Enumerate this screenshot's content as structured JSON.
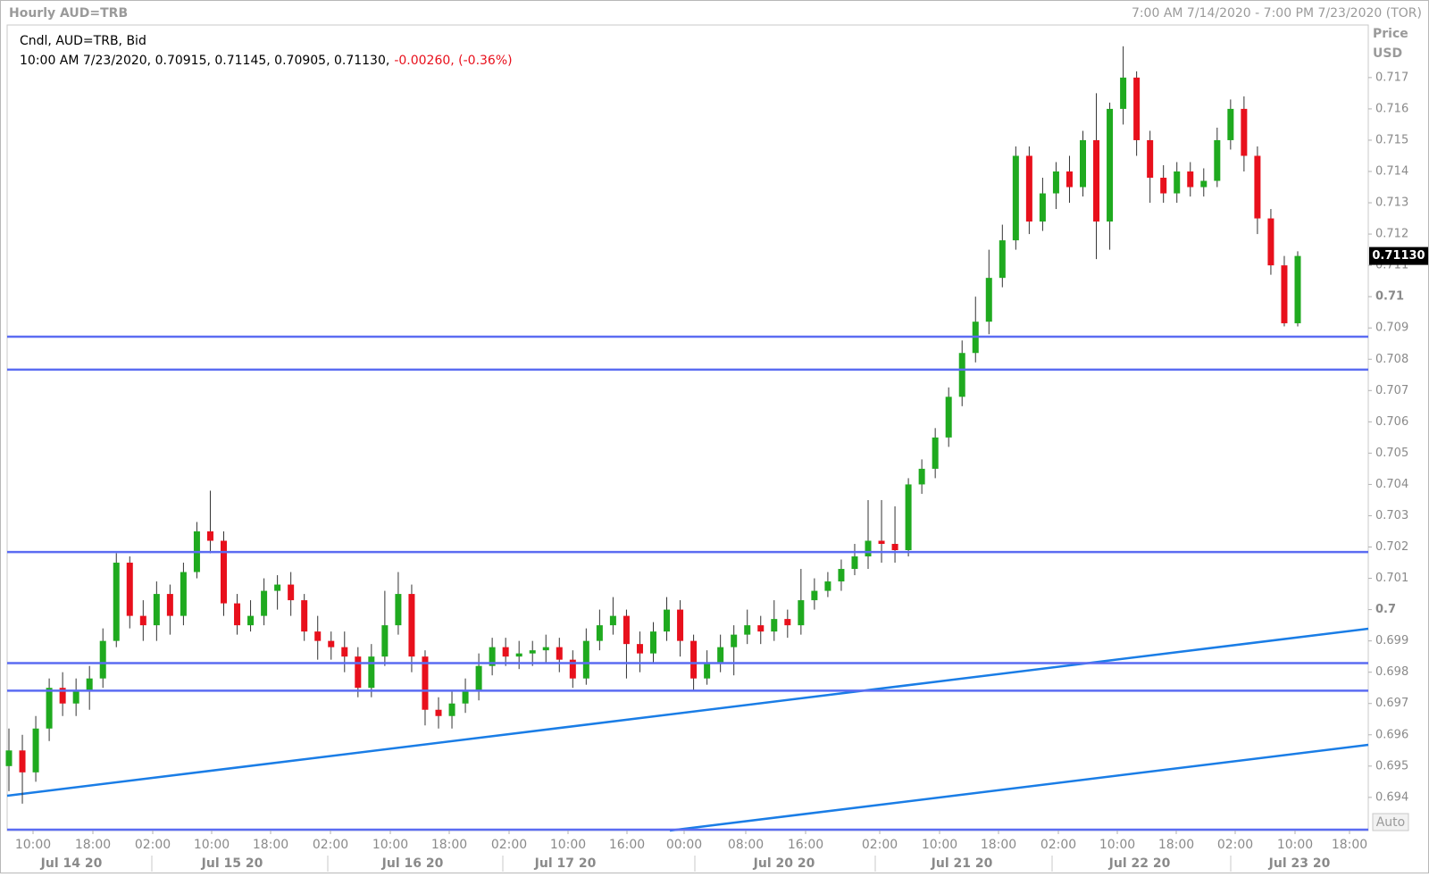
{
  "header": {
    "title": "Hourly AUD=TRB",
    "range": "7:00 AM 7/14/2020 - 7:00 PM 7/23/2020 (TOR)"
  },
  "chart_data": {
    "type": "candlestick",
    "legend_title": "Cndl, AUD=TRB, Bid",
    "legend_values": "10:00 AM 7/23/2020, 0.70915, 0.71145, 0.70905, 0.71130,",
    "legend_change": "-0.00260, (-0.36%)",
    "y_axis_title": [
      "Price",
      "USD"
    ],
    "last_price_label": "0.71130",
    "auto_label": "Auto",
    "up_color": "#1faa1f",
    "down_color": "#e8101c",
    "level_color": "#5b6cf2",
    "ylim": [
      0.69294,
      0.71868
    ],
    "yticks": [
      0.717,
      0.716,
      0.715,
      0.714,
      0.713,
      0.712,
      0.711,
      0.71,
      0.709,
      0.708,
      0.707,
      0.706,
      0.705,
      0.704,
      0.703,
      0.702,
      0.701,
      0.7,
      0.699,
      0.698,
      0.697,
      0.696,
      0.695,
      0.694
    ],
    "xtick_labels": [
      "10:00",
      "18:00",
      "02:00",
      "10:00",
      "18:00",
      "02:00",
      "10:00",
      "18:00",
      "02:00",
      "10:00",
      "16:00",
      "00:00",
      "08:00",
      "16:00",
      "02:00",
      "10:00",
      "18:00",
      "02:00",
      "10:00",
      "18:00",
      "02:00",
      "10:00",
      "18:00"
    ],
    "date_labels": [
      "Jul 14 20",
      "Jul 15 20",
      "Jul 16 20",
      "Jul 17 20",
      "Jul 20 20",
      "Jul 21 20",
      "Jul 22 20",
      "Jul 23 20"
    ],
    "levels": [
      0.70872,
      0.70767,
      0.70184,
      0.69829,
      0.69741
    ],
    "ohlc": [
      [
        0.695,
        0.6962,
        0.6942,
        0.6955
      ],
      [
        0.6955,
        0.696,
        0.6938,
        0.6948
      ],
      [
        0.6948,
        0.6966,
        0.6945,
        0.6962
      ],
      [
        0.6962,
        0.6978,
        0.6958,
        0.6975
      ],
      [
        0.6975,
        0.698,
        0.6966,
        0.697
      ],
      [
        0.697,
        0.6978,
        0.6966,
        0.6974
      ],
      [
        0.6974,
        0.6982,
        0.6968,
        0.6978
      ],
      [
        0.6978,
        0.6994,
        0.6975,
        0.699
      ],
      [
        0.699,
        0.7018,
        0.6988,
        0.7015
      ],
      [
        0.7015,
        0.7017,
        0.6994,
        0.6998
      ],
      [
        0.6998,
        0.7003,
        0.699,
        0.6995
      ],
      [
        0.6995,
        0.7009,
        0.699,
        0.7005
      ],
      [
        0.7005,
        0.7008,
        0.6992,
        0.6998
      ],
      [
        0.6998,
        0.7015,
        0.6995,
        0.7012
      ],
      [
        0.7012,
        0.7028,
        0.701,
        0.7025
      ],
      [
        0.7025,
        0.7038,
        0.7018,
        0.7022
      ],
      [
        0.7022,
        0.7025,
        0.6998,
        0.7002
      ],
      [
        0.7002,
        0.7005,
        0.6992,
        0.6995
      ],
      [
        0.6995,
        0.7003,
        0.6993,
        0.6998
      ],
      [
        0.6998,
        0.701,
        0.6995,
        0.7006
      ],
      [
        0.7006,
        0.7011,
        0.7,
        0.7008
      ],
      [
        0.7008,
        0.7012,
        0.6998,
        0.7003
      ],
      [
        0.7003,
        0.7005,
        0.699,
        0.6993
      ],
      [
        0.6993,
        0.6998,
        0.6984,
        0.699
      ],
      [
        0.699,
        0.6993,
        0.6984,
        0.6988
      ],
      [
        0.6988,
        0.6993,
        0.698,
        0.6985
      ],
      [
        0.6985,
        0.6988,
        0.6972,
        0.6975
      ],
      [
        0.6975,
        0.6989,
        0.6972,
        0.6985
      ],
      [
        0.6985,
        0.7006,
        0.6982,
        0.6995
      ],
      [
        0.6995,
        0.7012,
        0.6992,
        0.7005
      ],
      [
        0.7005,
        0.7008,
        0.698,
        0.6985
      ],
      [
        0.6985,
        0.6987,
        0.6963,
        0.6968
      ],
      [
        0.6968,
        0.6972,
        0.6962,
        0.6966
      ],
      [
        0.6966,
        0.6974,
        0.6962,
        0.697
      ],
      [
        0.697,
        0.6978,
        0.6967,
        0.6974
      ],
      [
        0.6974,
        0.6986,
        0.6971,
        0.6982
      ],
      [
        0.6982,
        0.6991,
        0.6979,
        0.6988
      ],
      [
        0.6988,
        0.6991,
        0.6982,
        0.6985
      ],
      [
        0.6985,
        0.699,
        0.6981,
        0.6986
      ],
      [
        0.6986,
        0.699,
        0.6982,
        0.6987
      ],
      [
        0.6987,
        0.6992,
        0.6983,
        0.6988
      ],
      [
        0.6988,
        0.6991,
        0.698,
        0.6984
      ],
      [
        0.6984,
        0.6987,
        0.6975,
        0.6978
      ],
      [
        0.6978,
        0.6994,
        0.6976,
        0.699
      ],
      [
        0.699,
        0.7,
        0.6987,
        0.6995
      ],
      [
        0.6995,
        0.7004,
        0.6992,
        0.6998
      ],
      [
        0.6998,
        0.7,
        0.6978,
        0.6989
      ],
      [
        0.6989,
        0.6993,
        0.698,
        0.6986
      ],
      [
        0.6986,
        0.6996,
        0.6983,
        0.6993
      ],
      [
        0.6993,
        0.7004,
        0.699,
        0.7
      ],
      [
        0.7,
        0.7003,
        0.6985,
        0.699
      ],
      [
        0.699,
        0.6992,
        0.6974,
        0.6978
      ],
      [
        0.6978,
        0.6987,
        0.6976,
        0.6983
      ],
      [
        0.6983,
        0.6992,
        0.698,
        0.6988
      ],
      [
        0.6988,
        0.6995,
        0.6979,
        0.6992
      ],
      [
        0.6992,
        0.7,
        0.6989,
        0.6995
      ],
      [
        0.6995,
        0.6998,
        0.6989,
        0.6993
      ],
      [
        0.6993,
        0.7003,
        0.699,
        0.6997
      ],
      [
        0.6997,
        0.7,
        0.6991,
        0.6995
      ],
      [
        0.6995,
        0.7013,
        0.6992,
        0.7003
      ],
      [
        0.7003,
        0.701,
        0.7,
        0.7006
      ],
      [
        0.7006,
        0.7012,
        0.7004,
        0.7009
      ],
      [
        0.7009,
        0.7016,
        0.7006,
        0.7013
      ],
      [
        0.7013,
        0.7021,
        0.7011,
        0.7017
      ],
      [
        0.7017,
        0.7035,
        0.7013,
        0.7022
      ],
      [
        0.7022,
        0.7035,
        0.7015,
        0.7021
      ],
      [
        0.7021,
        0.7033,
        0.7015,
        0.7019
      ],
      [
        0.7019,
        0.7042,
        0.7017,
        0.704
      ],
      [
        0.704,
        0.7048,
        0.7037,
        0.7045
      ],
      [
        0.7045,
        0.7058,
        0.7042,
        0.7055
      ],
      [
        0.7055,
        0.7071,
        0.7052,
        0.7068
      ],
      [
        0.7068,
        0.7086,
        0.7065,
        0.7082
      ],
      [
        0.7082,
        0.71,
        0.7079,
        0.7092
      ],
      [
        0.7092,
        0.7115,
        0.7088,
        0.7106
      ],
      [
        0.7106,
        0.7123,
        0.7103,
        0.7118
      ],
      [
        0.7118,
        0.7148,
        0.7115,
        0.7145
      ],
      [
        0.7145,
        0.7148,
        0.712,
        0.7124
      ],
      [
        0.7124,
        0.7138,
        0.7121,
        0.7133
      ],
      [
        0.7133,
        0.7143,
        0.7128,
        0.714
      ],
      [
        0.714,
        0.7145,
        0.713,
        0.7135
      ],
      [
        0.7135,
        0.7153,
        0.7132,
        0.715
      ],
      [
        0.715,
        0.7165,
        0.7112,
        0.7124
      ],
      [
        0.7124,
        0.7162,
        0.7115,
        0.716
      ],
      [
        0.716,
        0.718,
        0.7155,
        0.717
      ],
      [
        0.717,
        0.7172,
        0.7145,
        0.715
      ],
      [
        0.715,
        0.7153,
        0.713,
        0.7138
      ],
      [
        0.7138,
        0.7142,
        0.713,
        0.7133
      ],
      [
        0.7133,
        0.7143,
        0.713,
        0.714
      ],
      [
        0.714,
        0.7143,
        0.7132,
        0.7135
      ],
      [
        0.7135,
        0.7141,
        0.7132,
        0.7137
      ],
      [
        0.7137,
        0.7154,
        0.7135,
        0.715
      ],
      [
        0.715,
        0.7163,
        0.7147,
        0.716
      ],
      [
        0.716,
        0.7164,
        0.714,
        0.7145
      ],
      [
        0.7145,
        0.7148,
        0.712,
        0.7125
      ],
      [
        0.7125,
        0.7128,
        0.7107,
        0.711
      ],
      [
        0.711,
        0.7113,
        0.70905,
        0.70915
      ],
      [
        0.70915,
        0.71145,
        0.70905,
        0.7113
      ]
    ]
  }
}
